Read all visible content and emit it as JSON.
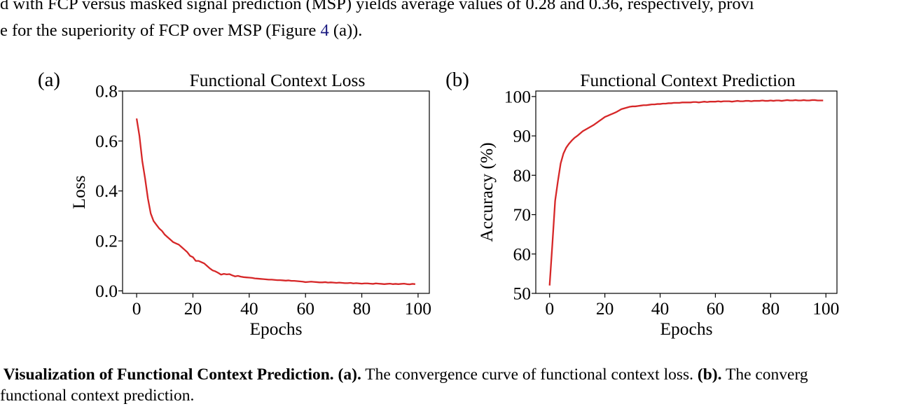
{
  "body_text": {
    "line1": "d with FCP versus masked signal prediction (MSP) yields average values of 0.28 and 0.36, respectively, provi",
    "line2_before": "e for the superiority of FCP over MSP (Figure ",
    "line2_ref": "4",
    "line2_after": " (a))."
  },
  "caption": {
    "lead_bold": "Visualization of Functional Context Prediction.",
    "part_a_bold": "(a).",
    "part_a_text": " The convergence curve of functional context loss. ",
    "part_b_bold": "(b).",
    "part_b_text": " The converg",
    "line2": "functional context prediction."
  },
  "colors": {
    "line": "#d62728",
    "axis": "#000000"
  },
  "chart_data": [
    {
      "panel_label": "(a)",
      "type": "line",
      "title": "Functional Context Loss",
      "xlabel": "Epochs",
      "ylabel": "Loss",
      "xlim": [
        -5,
        104
      ],
      "ylim": [
        -0.01,
        0.8
      ],
      "xticks": [
        0,
        20,
        40,
        60,
        80,
        100
      ],
      "yticks": [
        0.0,
        0.2,
        0.4,
        0.6,
        0.8
      ],
      "ytick_labels": [
        "0.0",
        "0.2",
        "0.4",
        "0.6",
        "0.8"
      ],
      "grid": false,
      "series": [
        {
          "x": [
            0,
            1,
            2,
            3,
            4,
            5,
            6,
            7,
            8,
            9,
            10,
            11,
            12,
            13,
            14,
            15,
            16,
            17,
            18,
            19,
            20,
            21,
            22,
            23,
            24,
            25,
            26,
            27,
            28,
            29,
            30,
            31,
            32,
            33,
            34,
            35,
            36,
            37,
            38,
            39,
            40,
            41,
            42,
            43,
            44,
            45,
            46,
            47,
            48,
            49,
            50,
            51,
            52,
            53,
            54,
            55,
            56,
            57,
            58,
            59,
            60,
            61,
            62,
            63,
            64,
            65,
            66,
            67,
            68,
            69,
            70,
            71,
            72,
            73,
            74,
            75,
            76,
            77,
            78,
            79,
            80,
            81,
            82,
            83,
            84,
            85,
            86,
            87,
            88,
            89,
            90,
            91,
            92,
            93,
            94,
            95,
            96,
            97,
            98,
            99
          ],
          "y": [
            0.69,
            0.62,
            0.52,
            0.45,
            0.37,
            0.31,
            0.28,
            0.265,
            0.25,
            0.24,
            0.225,
            0.215,
            0.205,
            0.195,
            0.19,
            0.185,
            0.175,
            0.165,
            0.155,
            0.14,
            0.135,
            0.12,
            0.12,
            0.115,
            0.11,
            0.1,
            0.09,
            0.082,
            0.078,
            0.072,
            0.065,
            0.068,
            0.066,
            0.067,
            0.062,
            0.058,
            0.06,
            0.057,
            0.055,
            0.054,
            0.053,
            0.052,
            0.05,
            0.049,
            0.048,
            0.047,
            0.046,
            0.045,
            0.045,
            0.044,
            0.043,
            0.043,
            0.042,
            0.041,
            0.042,
            0.04,
            0.04,
            0.039,
            0.038,
            0.037,
            0.035,
            0.036,
            0.037,
            0.036,
            0.035,
            0.034,
            0.034,
            0.035,
            0.033,
            0.034,
            0.033,
            0.032,
            0.033,
            0.032,
            0.031,
            0.031,
            0.032,
            0.03,
            0.031,
            0.03,
            0.029,
            0.03,
            0.03,
            0.029,
            0.028,
            0.03,
            0.029,
            0.028,
            0.027,
            0.028,
            0.029,
            0.027,
            0.028,
            0.027,
            0.028,
            0.029,
            0.027,
            0.026,
            0.028,
            0.027
          ]
        }
      ]
    },
    {
      "panel_label": "(b)",
      "type": "line",
      "title": "Functional Context Prediction",
      "xlabel": "Epochs",
      "ylabel": "Accuracy (%)",
      "xlim": [
        -5,
        104
      ],
      "ylim": [
        50,
        101.4
      ],
      "xticks": [
        0,
        20,
        40,
        60,
        80,
        100
      ],
      "yticks": [
        50,
        60,
        70,
        80,
        90,
        100
      ],
      "ytick_labels": [
        "50",
        "60",
        "70",
        "80",
        "90",
        "100"
      ],
      "grid": false,
      "series": [
        {
          "x": [
            0,
            1,
            2,
            3,
            4,
            5,
            6,
            7,
            8,
            9,
            10,
            11,
            12,
            13,
            14,
            15,
            16,
            17,
            18,
            19,
            20,
            21,
            22,
            23,
            24,
            25,
            26,
            27,
            28,
            29,
            30,
            31,
            32,
            33,
            34,
            35,
            36,
            37,
            38,
            39,
            40,
            41,
            42,
            43,
            44,
            45,
            46,
            47,
            48,
            49,
            50,
            51,
            52,
            53,
            54,
            55,
            56,
            57,
            58,
            59,
            60,
            61,
            62,
            63,
            64,
            65,
            66,
            67,
            68,
            69,
            70,
            71,
            72,
            73,
            74,
            75,
            76,
            77,
            78,
            79,
            80,
            81,
            82,
            83,
            84,
            85,
            86,
            87,
            88,
            89,
            90,
            91,
            92,
            93,
            94,
            95,
            96,
            97,
            98,
            99
          ],
          "y": [
            52.0,
            62.5,
            73.5,
            78.5,
            83.0,
            85.5,
            87.0,
            88.0,
            88.8,
            89.5,
            90.0,
            90.6,
            91.2,
            91.6,
            92.0,
            92.4,
            92.8,
            93.3,
            93.8,
            94.3,
            94.8,
            95.1,
            95.4,
            95.7,
            96.0,
            96.4,
            96.8,
            97.0,
            97.2,
            97.4,
            97.5,
            97.5,
            97.6,
            97.7,
            97.8,
            97.8,
            97.9,
            98.0,
            98.0,
            98.1,
            98.1,
            98.2,
            98.2,
            98.3,
            98.3,
            98.4,
            98.4,
            98.4,
            98.5,
            98.5,
            98.5,
            98.5,
            98.6,
            98.6,
            98.5,
            98.6,
            98.7,
            98.6,
            98.7,
            98.7,
            98.7,
            98.8,
            98.7,
            98.8,
            98.8,
            98.8,
            98.7,
            98.8,
            98.9,
            98.8,
            98.8,
            98.9,
            98.9,
            98.8,
            98.9,
            98.9,
            98.9,
            99.0,
            98.9,
            98.9,
            99.0,
            98.9,
            99.0,
            99.0,
            98.9,
            99.0,
            99.1,
            99.0,
            99.0,
            99.1,
            99.0,
            99.0,
            99.1,
            99.0,
            99.0,
            99.1,
            99.1,
            99.0,
            99.0,
            99.0
          ]
        }
      ]
    }
  ]
}
